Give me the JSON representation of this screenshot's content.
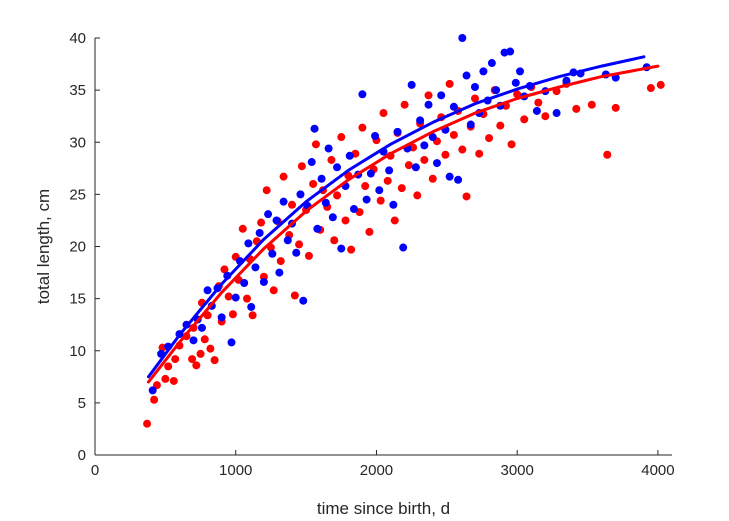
{
  "chart_data": {
    "type": "scatter",
    "title": "",
    "xlabel": "time since birth, d",
    "ylabel": "total length, cm",
    "xlim": [
      0,
      4100
    ],
    "ylim": [
      0,
      40
    ],
    "xticks": [
      0,
      1000,
      2000,
      3000,
      4000
    ],
    "yticks": [
      0,
      5,
      10,
      15,
      20,
      25,
      30,
      35,
      40
    ],
    "grid": false,
    "legend": "none",
    "series": [
      {
        "color": "#ff0000",
        "marker": "filled-circle",
        "points": [
          [
            370,
            3
          ],
          [
            420,
            5.3
          ],
          [
            440,
            6.7
          ],
          [
            480,
            10.3
          ],
          [
            500,
            7.3
          ],
          [
            520,
            8.5
          ],
          [
            560,
            7.1
          ],
          [
            570,
            9.2
          ],
          [
            600,
            10.5
          ],
          [
            650,
            11.4
          ],
          [
            690,
            9.2
          ],
          [
            700,
            12.2
          ],
          [
            720,
            8.6
          ],
          [
            750,
            9.7
          ],
          [
            760,
            14.6
          ],
          [
            780,
            11.1
          ],
          [
            800,
            13.4
          ],
          [
            820,
            10.2
          ],
          [
            850,
            9.1
          ],
          [
            880,
            16.2
          ],
          [
            900,
            12.8
          ],
          [
            920,
            17.8
          ],
          [
            950,
            15.2
          ],
          [
            980,
            13.5
          ],
          [
            1000,
            19.0
          ],
          [
            1020,
            16.8
          ],
          [
            1050,
            21.7
          ],
          [
            1080,
            15.0
          ],
          [
            1100,
            18.8
          ],
          [
            1120,
            13.4
          ],
          [
            1150,
            20.5
          ],
          [
            1180,
            22.3
          ],
          [
            1200,
            17.1
          ],
          [
            1220,
            25.4
          ],
          [
            1250,
            19.9
          ],
          [
            1270,
            15.8
          ],
          [
            1300,
            22.4
          ],
          [
            1320,
            18.6
          ],
          [
            1340,
            26.7
          ],
          [
            1380,
            21.1
          ],
          [
            1400,
            24.0
          ],
          [
            1420,
            15.3
          ],
          [
            1450,
            20.2
          ],
          [
            1470,
            27.7
          ],
          [
            1500,
            23.5
          ],
          [
            1520,
            19.1
          ],
          [
            1550,
            26.0
          ],
          [
            1570,
            29.8
          ],
          [
            1600,
            21.6
          ],
          [
            1620,
            25.4
          ],
          [
            1650,
            23.8
          ],
          [
            1680,
            28.3
          ],
          [
            1700,
            20.6
          ],
          [
            1720,
            24.9
          ],
          [
            1750,
            30.5
          ],
          [
            1780,
            22.5
          ],
          [
            1800,
            26.8
          ],
          [
            1820,
            19.7
          ],
          [
            1850,
            28.9
          ],
          [
            1880,
            23.3
          ],
          [
            1900,
            31.4
          ],
          [
            1920,
            25.8
          ],
          [
            1950,
            21.4
          ],
          [
            1980,
            27.4
          ],
          [
            2000,
            30.2
          ],
          [
            2030,
            24.4
          ],
          [
            2050,
            32.8
          ],
          [
            2080,
            26.3
          ],
          [
            2100,
            28.7
          ],
          [
            2130,
            22.5
          ],
          [
            2150,
            30.9
          ],
          [
            2180,
            25.6
          ],
          [
            2200,
            33.6
          ],
          [
            2230,
            27.8
          ],
          [
            2260,
            29.5
          ],
          [
            2290,
            24.9
          ],
          [
            2310,
            31.8
          ],
          [
            2340,
            28.3
          ],
          [
            2370,
            34.5
          ],
          [
            2400,
            26.5
          ],
          [
            2430,
            30.1
          ],
          [
            2460,
            32.4
          ],
          [
            2490,
            28.8
          ],
          [
            2520,
            35.6
          ],
          [
            2550,
            30.7
          ],
          [
            2580,
            33.0
          ],
          [
            2610,
            29.3
          ],
          [
            2640,
            24.8
          ],
          [
            2670,
            31.5
          ],
          [
            2700,
            34.2
          ],
          [
            2730,
            28.9
          ],
          [
            2760,
            32.7
          ],
          [
            2800,
            30.4
          ],
          [
            2840,
            35.0
          ],
          [
            2880,
            31.6
          ],
          [
            2920,
            33.5
          ],
          [
            2960,
            29.8
          ],
          [
            3000,
            34.6
          ],
          [
            3050,
            32.2
          ],
          [
            3100,
            35.3
          ],
          [
            3150,
            33.8
          ],
          [
            3200,
            32.5
          ],
          [
            3280,
            34.9
          ],
          [
            3350,
            35.6
          ],
          [
            3420,
            33.2
          ],
          [
            3530,
            33.6
          ],
          [
            3640,
            28.8
          ],
          [
            3700,
            33.3
          ],
          [
            3950,
            35.2
          ],
          [
            4020,
            35.5
          ]
        ]
      },
      {
        "color": "#0000ff",
        "marker": "filled-circle",
        "points": [
          [
            410,
            6.2
          ],
          [
            470,
            9.7
          ],
          [
            520,
            10.4
          ],
          [
            600,
            11.6
          ],
          [
            650,
            12.5
          ],
          [
            700,
            11.0
          ],
          [
            730,
            13.0
          ],
          [
            760,
            12.2
          ],
          [
            800,
            15.8
          ],
          [
            830,
            14.3
          ],
          [
            870,
            16.0
          ],
          [
            900,
            13.2
          ],
          [
            940,
            17.2
          ],
          [
            970,
            10.8
          ],
          [
            1000,
            15.1
          ],
          [
            1030,
            18.6
          ],
          [
            1060,
            16.5
          ],
          [
            1090,
            20.3
          ],
          [
            1110,
            14.2
          ],
          [
            1140,
            18.0
          ],
          [
            1170,
            21.3
          ],
          [
            1200,
            16.6
          ],
          [
            1230,
            23.1
          ],
          [
            1260,
            19.3
          ],
          [
            1290,
            22.5
          ],
          [
            1310,
            17.5
          ],
          [
            1340,
            24.3
          ],
          [
            1370,
            20.6
          ],
          [
            1400,
            22.2
          ],
          [
            1430,
            19.4
          ],
          [
            1460,
            25.0
          ],
          [
            1480,
            14.8
          ],
          [
            1510,
            23.9
          ],
          [
            1540,
            28.1
          ],
          [
            1560,
            31.3
          ],
          [
            1580,
            21.7
          ],
          [
            1610,
            26.5
          ],
          [
            1640,
            24.2
          ],
          [
            1660,
            29.4
          ],
          [
            1690,
            22.8
          ],
          [
            1720,
            27.6
          ],
          [
            1750,
            19.8
          ],
          [
            1780,
            25.8
          ],
          [
            1810,
            28.7
          ],
          [
            1840,
            23.6
          ],
          [
            1870,
            26.9
          ],
          [
            1900,
            34.6
          ],
          [
            1930,
            24.5
          ],
          [
            1960,
            27.0
          ],
          [
            1990,
            30.6
          ],
          [
            2020,
            25.4
          ],
          [
            2050,
            29.1
          ],
          [
            2090,
            27.3
          ],
          [
            2120,
            24.0
          ],
          [
            2150,
            31.0
          ],
          [
            2190,
            19.9
          ],
          [
            2220,
            29.4
          ],
          [
            2250,
            35.5
          ],
          [
            2280,
            27.6
          ],
          [
            2310,
            32.1
          ],
          [
            2340,
            29.7
          ],
          [
            2370,
            33.6
          ],
          [
            2400,
            30.5
          ],
          [
            2430,
            28.0
          ],
          [
            2460,
            34.5
          ],
          [
            2490,
            31.2
          ],
          [
            2520,
            26.7
          ],
          [
            2550,
            33.4
          ],
          [
            2580,
            26.4
          ],
          [
            2610,
            40
          ],
          [
            2640,
            36.4
          ],
          [
            2670,
            31.7
          ],
          [
            2700,
            35.3
          ],
          [
            2730,
            32.8
          ],
          [
            2760,
            36.8
          ],
          [
            2790,
            34.0
          ],
          [
            2820,
            37.6
          ],
          [
            2850,
            35.0
          ],
          [
            2880,
            33.5
          ],
          [
            2910,
            38.6
          ],
          [
            2950,
            38.7
          ],
          [
            2990,
            35.7
          ],
          [
            3020,
            36.8
          ],
          [
            3050,
            34.4
          ],
          [
            3090,
            35.4
          ],
          [
            3140,
            33.0
          ],
          [
            3200,
            34.9
          ],
          [
            3280,
            32.8
          ],
          [
            3350,
            35.9
          ],
          [
            3400,
            36.7
          ],
          [
            3450,
            36.6
          ],
          [
            3630,
            36.5
          ],
          [
            3700,
            36.2
          ],
          [
            3920,
            37.2
          ]
        ]
      }
    ],
    "fit_lines": [
      {
        "color": "#ff0000",
        "points": [
          [
            380,
            7.0
          ],
          [
            600,
            10.8
          ],
          [
            900,
            15.6
          ],
          [
            1200,
            19.8
          ],
          [
            1500,
            23.4
          ],
          [
            1800,
            26.4
          ],
          [
            2100,
            28.9
          ],
          [
            2400,
            31.0
          ],
          [
            2700,
            32.8
          ],
          [
            3000,
            34.2
          ],
          [
            3300,
            35.3
          ],
          [
            3600,
            36.3
          ],
          [
            4000,
            37.3
          ]
        ]
      },
      {
        "color": "#0000ff",
        "points": [
          [
            380,
            7.5
          ],
          [
            600,
            11.5
          ],
          [
            900,
            16.4
          ],
          [
            1200,
            20.7
          ],
          [
            1500,
            24.3
          ],
          [
            1800,
            27.3
          ],
          [
            2100,
            29.8
          ],
          [
            2400,
            31.9
          ],
          [
            2700,
            33.7
          ],
          [
            3000,
            35.1
          ],
          [
            3300,
            36.3
          ],
          [
            3600,
            37.3
          ],
          [
            3900,
            38.2
          ]
        ]
      }
    ]
  }
}
